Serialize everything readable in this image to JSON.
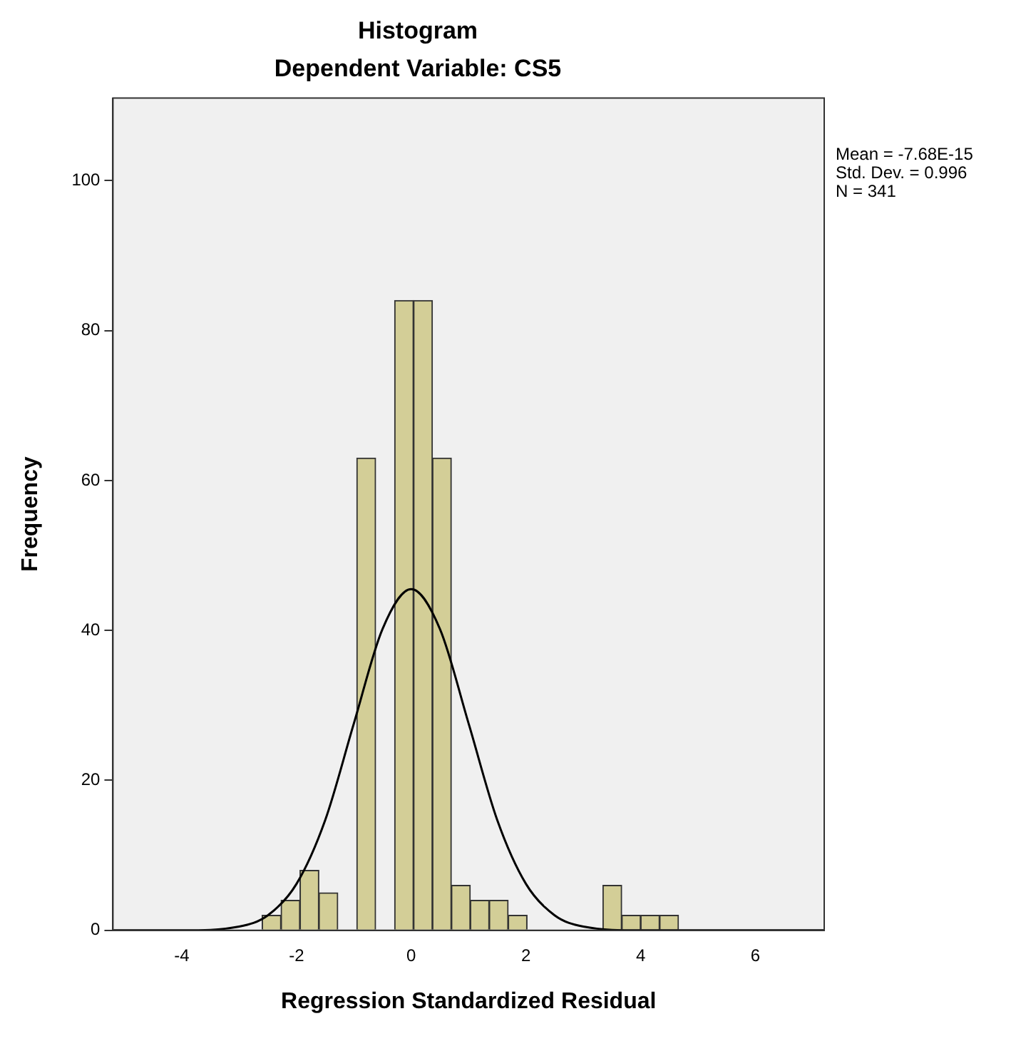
{
  "chart_data": {
    "type": "histogram",
    "title": "Histogram",
    "subtitle": "Dependent Variable: CS5",
    "xlabel": "Regression Standardized Residual",
    "ylabel": "Frequency",
    "bins": [
      -2.6,
      -2.27,
      -1.94,
      -1.61,
      -1.28,
      -0.95,
      -0.62,
      -0.29,
      0.04,
      0.37,
      0.7,
      1.03,
      1.36,
      1.69,
      2.02,
      2.35,
      2.68,
      3.01,
      3.34,
      3.67,
      4.0,
      4.33,
      4.66
    ],
    "values": [
      2,
      4,
      8,
      5,
      0,
      63,
      0,
      84,
      84,
      63,
      6,
      4,
      4,
      2,
      0,
      0,
      0,
      0,
      6,
      2,
      2,
      2
    ],
    "color": "#d3ce97",
    "series": [
      {
        "type": "line",
        "color": "#000000",
        "x": [
          -5.2,
          -4,
          -3,
          -2.5,
          -2,
          -1.5,
          -1,
          -0.5,
          0,
          0.5,
          1,
          1.5,
          2,
          2.5,
          3,
          4,
          7.2
        ],
        "values": [
          0,
          0,
          0.5,
          2,
          6.2,
          14.7,
          27.6,
          40.2,
          45.5,
          40.2,
          27.6,
          14.7,
          6.2,
          2,
          0.5,
          0,
          0
        ]
      }
    ],
    "xlim": [
      -5.2,
      7.2
    ],
    "xticks": [
      -4,
      -2,
      0,
      2,
      4,
      6
    ],
    "ylim": [
      0,
      111
    ],
    "yticks": [
      0,
      20,
      40,
      60,
      80,
      100
    ],
    "grid": false,
    "legend": false,
    "marker": "none",
    "line_style": "solid",
    "annotations": [
      "Mean = -7.68E-15",
      "Std. Dev. = 0.996",
      "N = 341"
    ]
  }
}
